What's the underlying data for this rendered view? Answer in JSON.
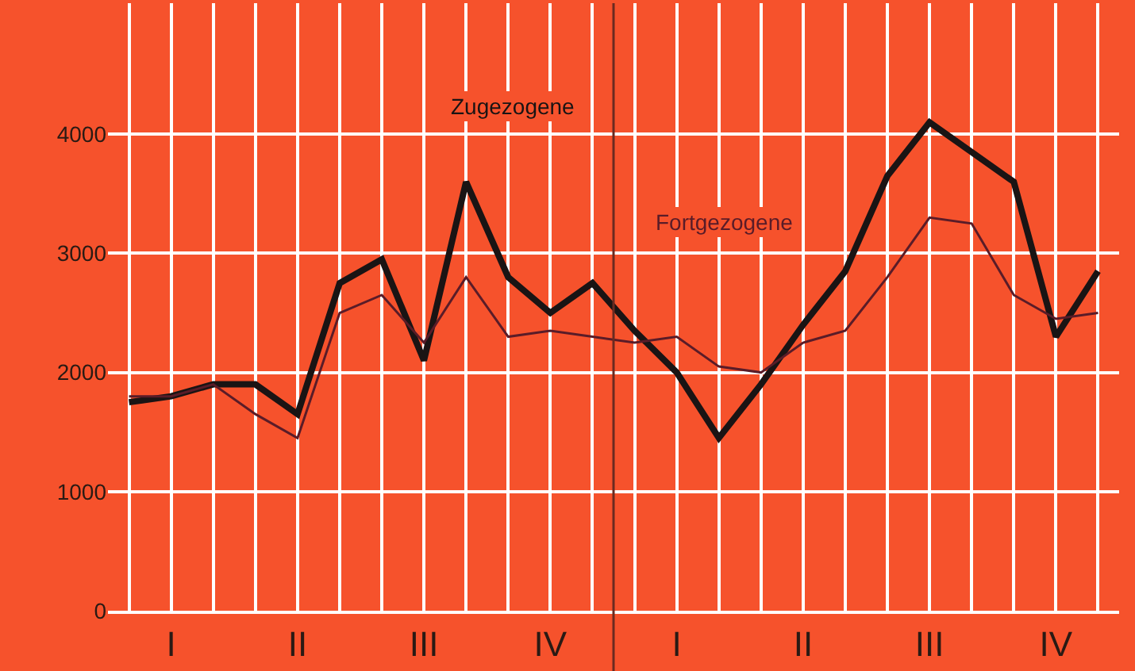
{
  "chart_data": {
    "type": "line",
    "categories": [
      null,
      "I",
      null,
      null,
      "II",
      null,
      null,
      "III",
      null,
      null,
      "IV",
      null,
      null,
      "I",
      null,
      null,
      "II",
      null,
      null,
      "III",
      null,
      null,
      "IV",
      null
    ],
    "series": [
      {
        "name": "Zugezogene",
        "color": "#1a1414",
        "values": [
          1750,
          1800,
          1900,
          1900,
          1650,
          2750,
          2950,
          2100,
          3600,
          2800,
          2500,
          2750,
          2350,
          2000,
          1450,
          1900,
          2400,
          2850,
          3650,
          4100,
          3850,
          3600,
          2300,
          2850
        ]
      },
      {
        "name": "Fortgezogene",
        "color": "#5a1c28",
        "values": [
          1800,
          1800,
          1900,
          1650,
          1450,
          2500,
          2650,
          2250,
          2800,
          2300,
          2350,
          2300,
          2250,
          2300,
          2050,
          2000,
          2250,
          2350,
          2800,
          3300,
          3250,
          2650,
          2450,
          2500
        ]
      }
    ],
    "ylim": [
      0,
      5100
    ],
    "yticks": [
      0,
      1000,
      2000,
      3000,
      4000
    ],
    "grid": true,
    "legend": false,
    "marker": "none",
    "line_style": "solid"
  }
}
